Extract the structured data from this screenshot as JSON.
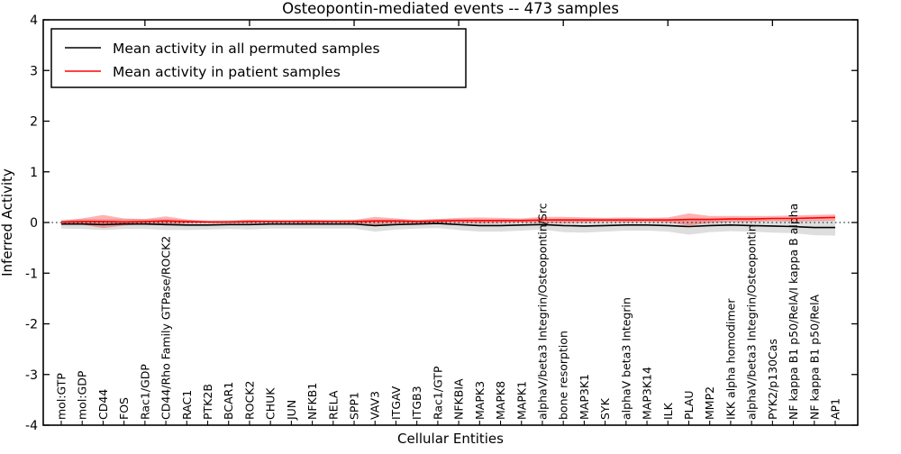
{
  "figure": {
    "background": "#ffffff",
    "text_color": "#000000"
  },
  "chart_data": {
    "type": "line",
    "title": "Osteopontin-mediated events -- 473 samples",
    "xlabel": "Cellular Entities",
    "ylabel": "Inferred Activity",
    "ylim": [
      -4,
      4
    ],
    "yticks": [
      4,
      3,
      2,
      1,
      0,
      -1,
      -2,
      -3,
      -4
    ],
    "grid": false,
    "legend_position": "upper left",
    "reference_line": {
      "y": 0,
      "style": "dotted",
      "color": "#000000"
    },
    "categories": [
      "mol:GTP",
      "mol:GDP",
      "CD44",
      "FOS",
      "Rac1/GDP",
      "CD44/Rho Family GTPase/ROCK2",
      "RAC1",
      "PTK2B",
      "BCAR1",
      "ROCK2",
      "CHUK",
      "JUN",
      "NFKB1",
      "RELA",
      "SPP1",
      "VAV3",
      "ITGAV",
      "ITGB3",
      "Rac1/GTP",
      "NFKBIA",
      "MAPK3",
      "MAPK8",
      "MAPK1",
      "alphaV/beta3 Integrin/Osteopontin/Src",
      "bone resorption",
      "MAP3K1",
      "SYK",
      "alphaV beta3 Integrin",
      "MAP3K14",
      "ILK",
      "PLAU",
      "MMP2",
      "IKK alpha homodimer",
      "alphaV/beta3 Integrin/Osteopontin",
      "PYK2/p130Cas",
      "NF kappa B1 p50/RelA/I kappa B alpha",
      "NF kappa B1 p50/RelA",
      "AP1"
    ],
    "series": [
      {
        "name": "Mean activity in all permuted samples",
        "color": "#000000",
        "values": [
          -0.03,
          -0.03,
          -0.04,
          -0.03,
          -0.03,
          -0.04,
          -0.05,
          -0.05,
          -0.04,
          -0.04,
          -0.03,
          -0.03,
          -0.03,
          -0.03,
          -0.03,
          -0.06,
          -0.04,
          -0.03,
          -0.02,
          -0.04,
          -0.06,
          -0.06,
          -0.05,
          -0.04,
          -0.06,
          -0.07,
          -0.06,
          -0.05,
          -0.05,
          -0.06,
          -0.08,
          -0.06,
          -0.05,
          -0.06,
          -0.07,
          -0.08,
          -0.1,
          -0.1
        ],
        "band": {
          "fill": "#000000",
          "fill_opacity": 0.13,
          "upper": [
            0.06,
            0.07,
            0.07,
            0.07,
            0.07,
            0.07,
            0.05,
            0.04,
            0.05,
            0.06,
            0.06,
            0.06,
            0.06,
            0.06,
            0.06,
            0.06,
            0.06,
            0.06,
            0.07,
            0.07,
            0.06,
            0.06,
            0.06,
            0.06,
            0.07,
            0.06,
            0.06,
            0.06,
            0.06,
            0.06,
            0.08,
            0.07,
            0.07,
            0.06,
            0.06,
            0.05,
            0.05,
            0.06
          ],
          "lower": [
            -0.12,
            -0.13,
            -0.15,
            -0.13,
            -0.13,
            -0.15,
            -0.15,
            -0.14,
            -0.13,
            -0.14,
            -0.12,
            -0.12,
            -0.12,
            -0.12,
            -0.12,
            -0.18,
            -0.14,
            -0.12,
            -0.11,
            -0.15,
            -0.18,
            -0.18,
            -0.16,
            -0.14,
            -0.19,
            -0.2,
            -0.18,
            -0.16,
            -0.16,
            -0.18,
            -0.24,
            -0.19,
            -0.17,
            -0.18,
            -0.2,
            -0.21,
            -0.25,
            -0.26
          ]
        }
      },
      {
        "name": "Mean activity in patient samples",
        "color": "#ff0000",
        "values": [
          0.01,
          0.02,
          0.02,
          0.01,
          0.02,
          0.03,
          0.02,
          0.01,
          0.01,
          0.02,
          0.02,
          0.02,
          0.02,
          0.02,
          0.02,
          0.03,
          0.03,
          0.02,
          0.03,
          0.04,
          0.04,
          0.04,
          0.04,
          0.05,
          0.05,
          0.05,
          0.05,
          0.05,
          0.05,
          0.05,
          0.06,
          0.06,
          0.07,
          0.07,
          0.08,
          0.08,
          0.09,
          0.1
        ],
        "band": {
          "fill": "#ff0000",
          "fill_opacity": 0.3,
          "upper": [
            0.03,
            0.08,
            0.15,
            0.08,
            0.07,
            0.12,
            0.06,
            0.03,
            0.03,
            0.05,
            0.04,
            0.04,
            0.05,
            0.04,
            0.05,
            0.11,
            0.08,
            0.05,
            0.07,
            0.09,
            0.1,
            0.09,
            0.08,
            0.11,
            0.11,
            0.1,
            0.09,
            0.1,
            0.09,
            0.1,
            0.18,
            0.13,
            0.13,
            0.13,
            0.13,
            0.14,
            0.15,
            0.16
          ],
          "lower": [
            -0.01,
            -0.04,
            -0.11,
            -0.06,
            -0.03,
            -0.06,
            -0.02,
            -0.01,
            -0.01,
            -0.01,
            0.0,
            0.0,
            -0.01,
            0.0,
            -0.01,
            -0.05,
            -0.02,
            -0.01,
            -0.01,
            -0.01,
            -0.02,
            -0.01,
            0.0,
            -0.01,
            -0.01,
            0.0,
            0.01,
            0.0,
            0.01,
            0.0,
            -0.06,
            -0.01,
            0.01,
            0.01,
            0.03,
            0.02,
            0.03,
            0.04
          ]
        }
      }
    ]
  }
}
